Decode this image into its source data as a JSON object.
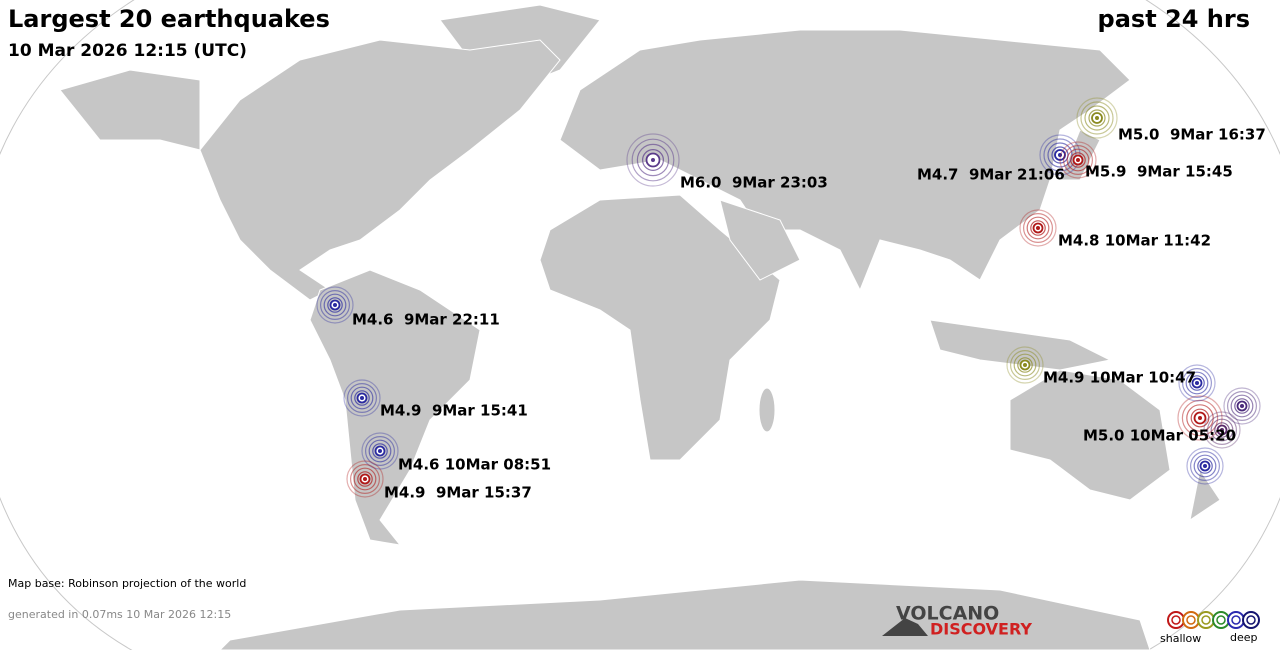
{
  "header": {
    "title": "Largest 20 earthquakes",
    "subtitle": "10 Mar 2026 12:15 (UTC)",
    "period": "past 24 hrs"
  },
  "quakes": [
    {
      "label": "M5.0  9Mar 16:37",
      "color": "#8a8a20"
    },
    {
      "label": "M4.7  9Mar 21:06",
      "color": "#2a2aa0"
    },
    {
      "label": "M5.9  9Mar 15:45",
      "color": "#b01818"
    },
    {
      "label": "M6.0  9Mar 23:03",
      "color": "#5a3a8a"
    },
    {
      "label": "M4.8 10Mar 11:42",
      "color": "#b01818"
    },
    {
      "label": "M4.6  9Mar 22:11",
      "color": "#2a2aa0"
    },
    {
      "label": "M4.9  9Mar 15:41",
      "color": "#2a2aa0"
    },
    {
      "label": "M4.6 10Mar 08:51",
      "color": "#2a2aa0"
    },
    {
      "label": "M4.9  9Mar 15:37",
      "color": "#b01818"
    },
    {
      "label": "M4.9 10Mar 10:47",
      "color": "#8a8a20"
    },
    {
      "label": "M5.0 10Mar 05:20",
      "color": "#b01818"
    },
    {
      "color": "#2a2aa0"
    },
    {
      "color": "#4a2a7a"
    },
    {
      "color": "#5a2a6a"
    },
    {
      "color": "#2a2aa0"
    }
  ],
  "footer": {
    "map_base": "Map base: Robinson projection of the world",
    "generated": "generated in 0.07ms 10 Mar 2026 12:15"
  },
  "logo": {
    "line1": "VOLCANO",
    "line2": "DISCOVERY"
  },
  "legend": {
    "shallow": "shallow",
    "deep": "deep",
    "colors": [
      "#c01818",
      "#d06a10",
      "#9a9a20",
      "#2a8a2a",
      "#2a2ab0",
      "#141470"
    ]
  }
}
